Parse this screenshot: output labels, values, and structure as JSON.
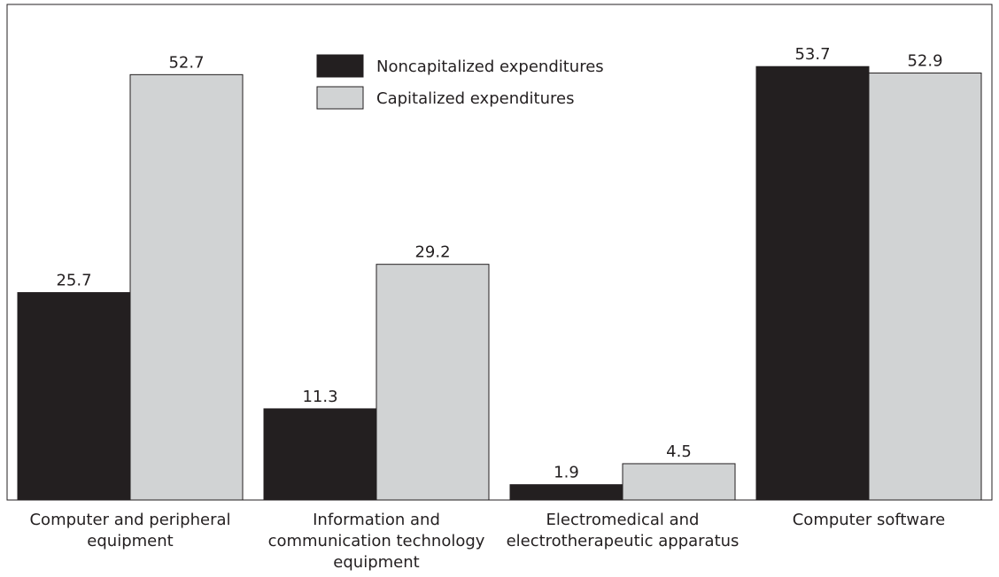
{
  "chart_data": {
    "type": "bar",
    "categories": [
      "Computer and peripheral equipment",
      "Information and communication technology equipment",
      "Electromedical and electrotherapeutic apparatus",
      "Computer software"
    ],
    "series": [
      {
        "name": "Noncapitalized expenditures",
        "color": "#231f20",
        "values": [
          25.7,
          11.3,
          1.9,
          53.7
        ]
      },
      {
        "name": "Capitalized expenditures",
        "color": "#d1d3d4",
        "values": [
          52.7,
          29.2,
          4.5,
          52.9
        ]
      }
    ],
    "ylim": [
      0,
      61.4
    ],
    "legend": "upper center",
    "grid": false
  }
}
